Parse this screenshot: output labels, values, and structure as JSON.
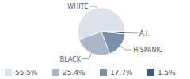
{
  "chart_data": {
    "type": "pie",
    "categories": [
      "WHITE",
      "BLACK",
      "HISPANIC",
      "A.I."
    ],
    "values": [
      55.5,
      25.4,
      17.7,
      1.5
    ],
    "value_labels": [
      "55.5%",
      "25.4%",
      "17.7%",
      "1.5%"
    ],
    "colors": [
      "#dde1ea",
      "#a9b6c9",
      "#7b90ab",
      "#3d5a80"
    ],
    "legend": "bottom"
  }
}
